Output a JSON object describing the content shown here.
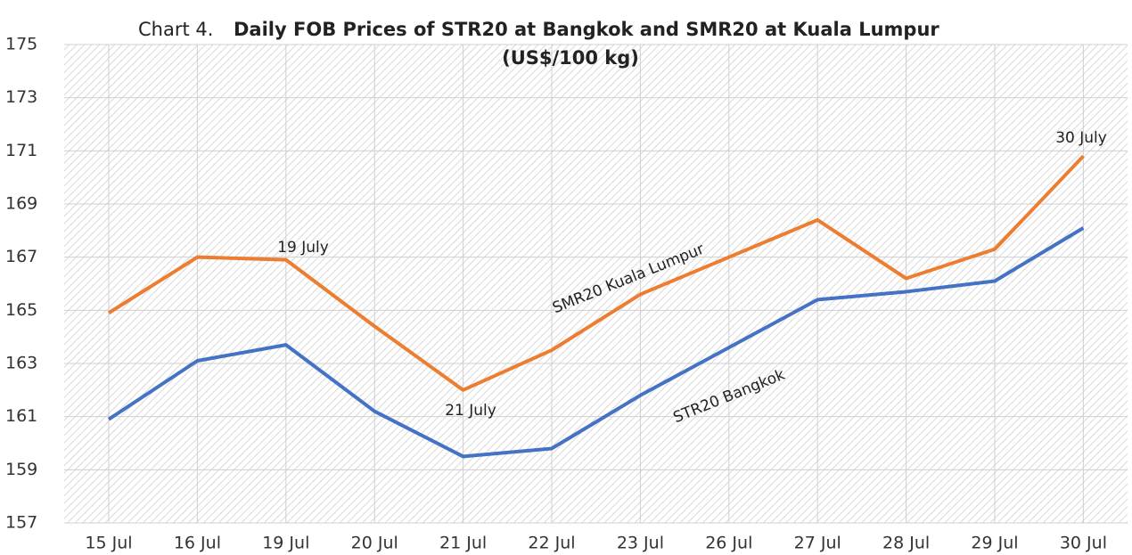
{
  "chart_data": {
    "type": "line",
    "title_label": "Chart 4.",
    "title": "Daily FOB Prices of STR20 at Bangkok and SMR20 at Kuala Lumpur",
    "subtitle": "(US$/100 kg)",
    "categories": [
      "15 Jul",
      "16 Jul",
      "19 Jul",
      "20 Jul",
      "21 Jul",
      "22 Jul",
      "23 Jul",
      "26 Jul",
      "27 Jul",
      "28 Jul",
      "29 Jul",
      "30 Jul"
    ],
    "series": [
      {
        "name": "SMR20 Kuala Lumpur",
        "color": "#ed7d31",
        "values": [
          164.9,
          167.0,
          166.9,
          164.4,
          162.0,
          163.5,
          165.6,
          167.0,
          168.4,
          166.2,
          167.3,
          170.8
        ]
      },
      {
        "name": "STR20 Bangkok",
        "color": "#4472c4",
        "values": [
          160.9,
          163.1,
          163.7,
          161.2,
          159.5,
          159.8,
          161.8,
          163.6,
          165.4,
          165.7,
          166.1,
          168.1
        ]
      }
    ],
    "annotations": [
      "19 July",
      "21 July",
      "30 July"
    ],
    "ylim": [
      157,
      175
    ],
    "yticks": [
      157,
      159,
      161,
      163,
      165,
      167,
      169,
      171,
      173,
      175
    ],
    "grid": true
  }
}
